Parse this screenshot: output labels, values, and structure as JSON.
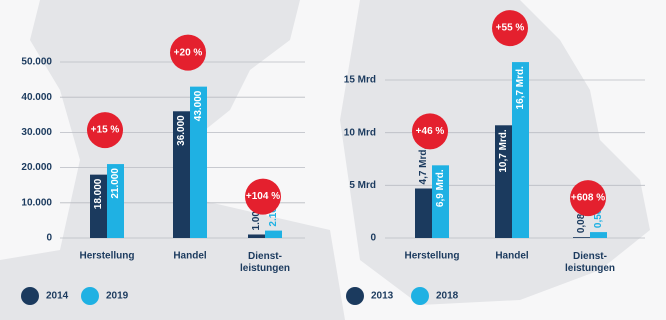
{
  "chart_data": [
    {
      "type": "bar",
      "categories": [
        "Herstellung",
        "Handel",
        "Dienst-\nleistungen"
      ],
      "series": [
        {
          "name": "2014",
          "color": "#1b3a5e",
          "values": [
            18000,
            36000,
            1000
          ],
          "value_labels": [
            "18.000",
            "36.000",
            "1.000"
          ]
        },
        {
          "name": "2019",
          "color": "#1fb1e3",
          "values": [
            21000,
            43000,
            2100
          ],
          "value_labels": [
            "21.000",
            "43.000",
            "2.100"
          ]
        }
      ],
      "annotations": [
        "+15 %",
        "+20 %",
        "+104 %"
      ],
      "ylim": [
        0,
        50000
      ],
      "yticks": [
        0,
        {
          "value": 10000,
          "label": "10.000"
        },
        {
          "value": 20000,
          "label": "20.000"
        },
        {
          "value": 30000,
          "label": "30.000"
        },
        {
          "value": 40000,
          "label": "40.000"
        },
        {
          "value": 50000,
          "label": "50.000"
        }
      ],
      "grid": true
    },
    {
      "type": "bar",
      "categories": [
        "Herstellung",
        "Handel",
        "Dienst-\nleistungen"
      ],
      "series": [
        {
          "name": "2013",
          "color": "#1b3a5e",
          "values": [
            4.7,
            10.7,
            0.08
          ],
          "value_labels": [
            "4,7 Mrd.",
            "10,7 Mrd.",
            "0,08 Mrd."
          ]
        },
        {
          "name": "2018",
          "color": "#1fb1e3",
          "values": [
            6.9,
            16.7,
            0.56
          ],
          "value_labels": [
            "6,9 Mrd.",
            "16,7 Mrd.",
            "0,56 Mrd."
          ]
        }
      ],
      "annotations": [
        "+46 %",
        "+55 %",
        "+608 %"
      ],
      "ylim": [
        0,
        15
      ],
      "yticks": [
        0,
        {
          "value": 5,
          "label": "5 Mrd"
        },
        {
          "value": 10,
          "label": "10 Mrd"
        },
        {
          "value": 15,
          "label": "15 Mrd"
        }
      ],
      "grid": true
    }
  ]
}
